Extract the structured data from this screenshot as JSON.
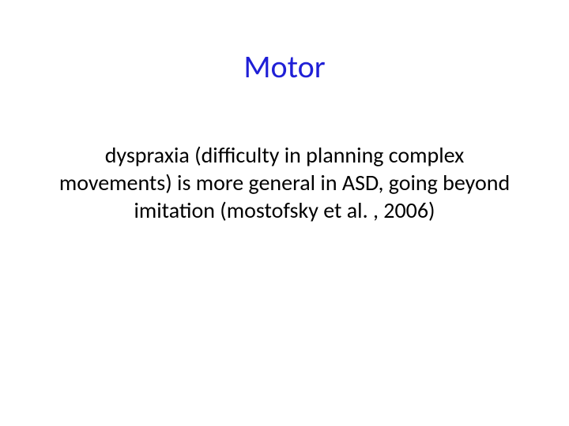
{
  "slide": {
    "title": {
      "text": "Motor",
      "color": "#1f1fd6",
      "font_size": 40,
      "font_weight": "normal"
    },
    "body": {
      "text": "dyspraxia (difficulty in planning complex movements) is more general in ASD, going beyond imitation (mostofsky et al. , 2006)",
      "color": "#000000",
      "font_size": 28,
      "font_weight": "normal"
    },
    "background_color": "#ffffff"
  }
}
